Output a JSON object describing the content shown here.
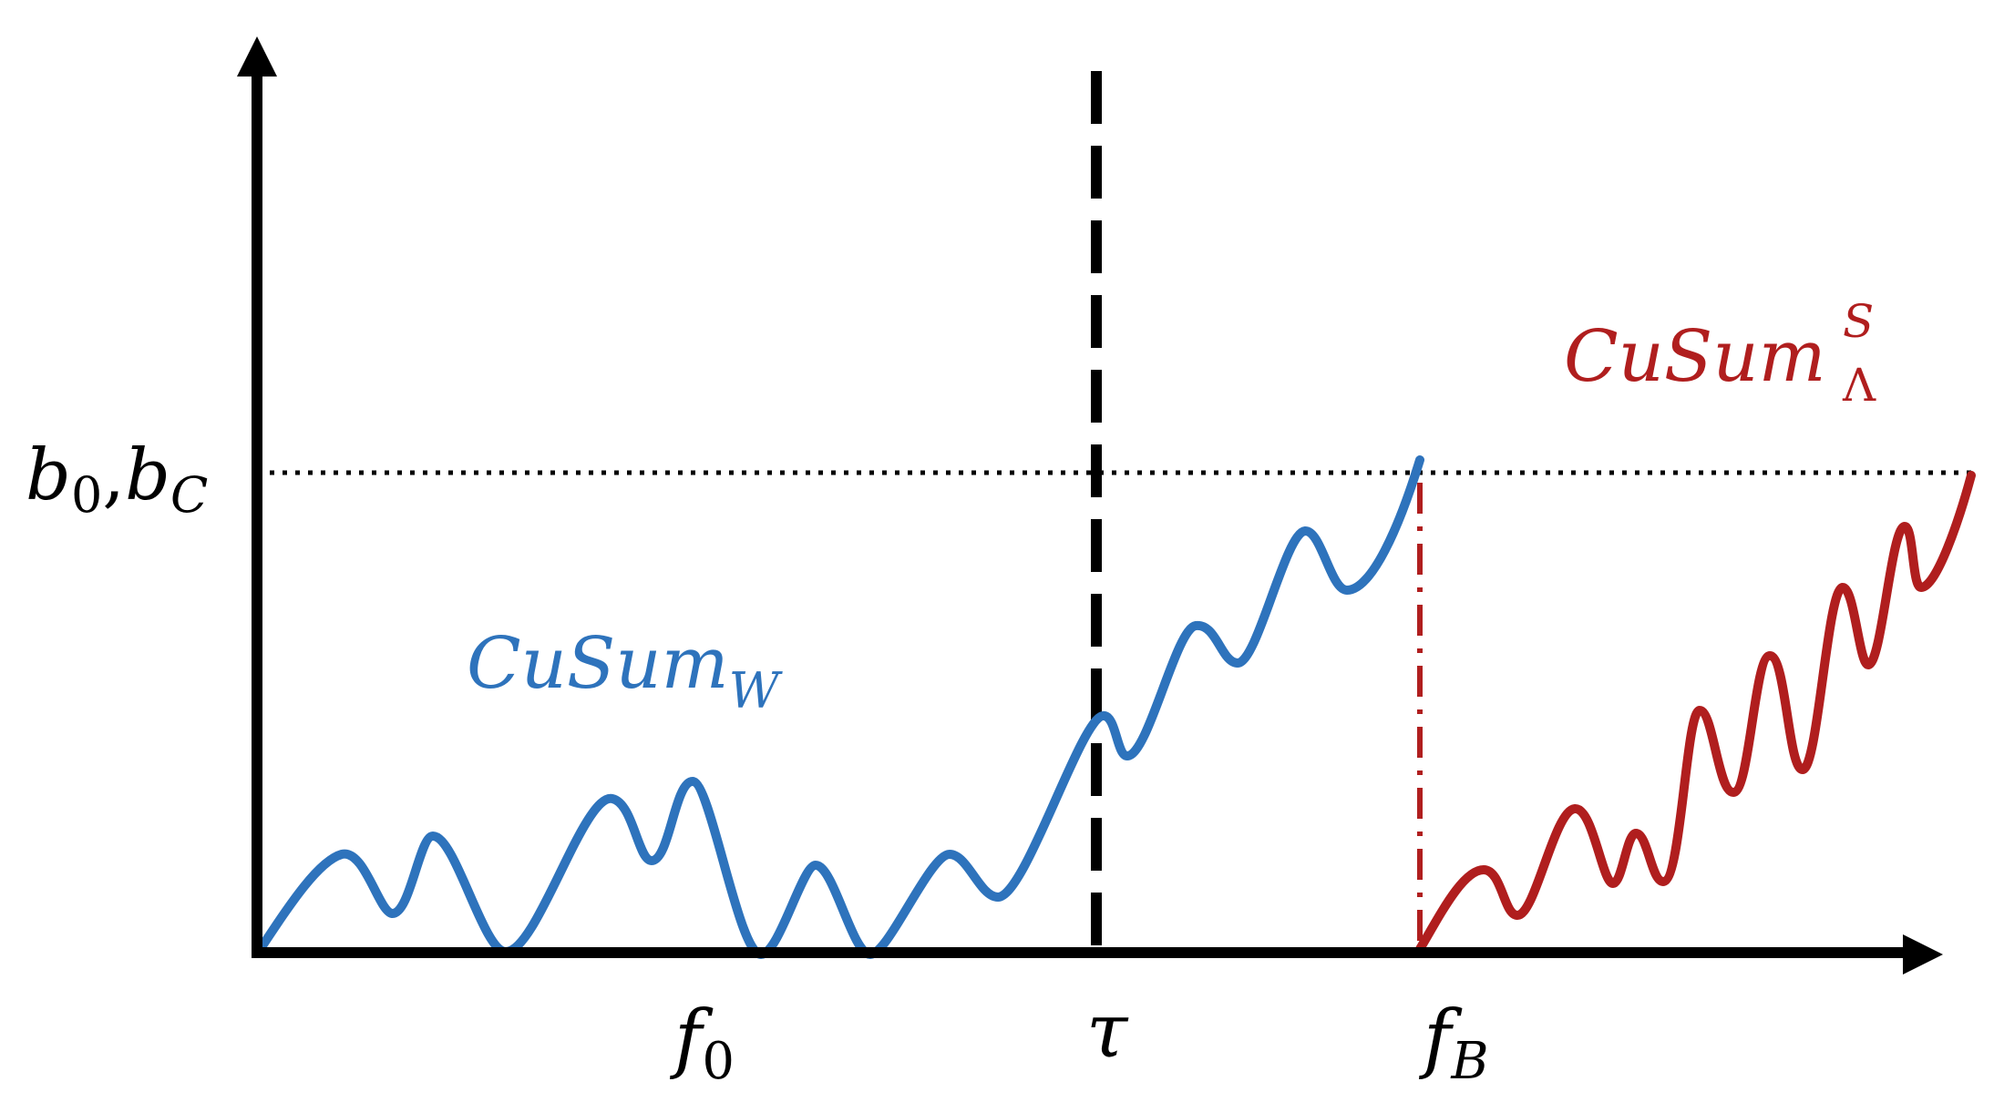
{
  "labels": {
    "threshold_base": "b",
    "threshold_sub_1": "0",
    "threshold_sep": ",",
    "threshold_sub_2": "C",
    "tau": "τ",
    "f0_base": "f",
    "f0_sub": "0",
    "fB_base": "f",
    "fB_sub": "B",
    "cusum_w_base": "CuSum",
    "cusum_w_sub": "W",
    "cusum_l_base": "CuSum",
    "cusum_l_sup": "S",
    "cusum_l_sub": "Λ"
  },
  "colors": {
    "axis": "#000000",
    "blue_curve": "#2E73BC",
    "red_curve": "#B01E1E",
    "text": "#000000"
  }
}
